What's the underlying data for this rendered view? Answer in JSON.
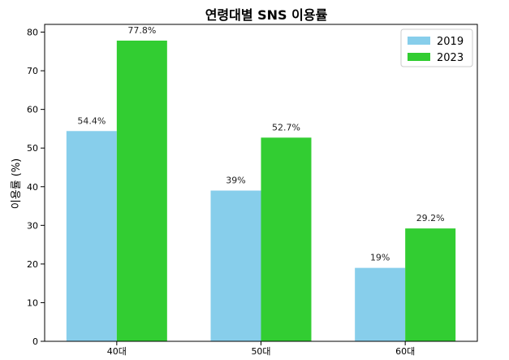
{
  "chart_data": {
    "type": "bar",
    "title": "연령대별 SNS 이용률",
    "xlabel": "",
    "ylabel": "이용률 (%)",
    "categories": [
      "40대",
      "50대",
      "60대"
    ],
    "series": [
      {
        "name": "2019",
        "values": [
          54.4,
          39,
          19
        ],
        "labels": [
          "54.4%",
          "39%",
          "19%"
        ],
        "color": "#87ceeb"
      },
      {
        "name": "2023",
        "values": [
          77.8,
          52.7,
          29.2
        ],
        "labels": [
          "77.8%",
          "52.7%",
          "29.2%"
        ],
        "color": "#32cd32"
      }
    ],
    "ylim": [
      0,
      82
    ],
    "yticks": [
      0,
      10,
      20,
      30,
      40,
      50,
      60,
      70,
      80
    ],
    "grid": false,
    "legend": "top-right"
  }
}
